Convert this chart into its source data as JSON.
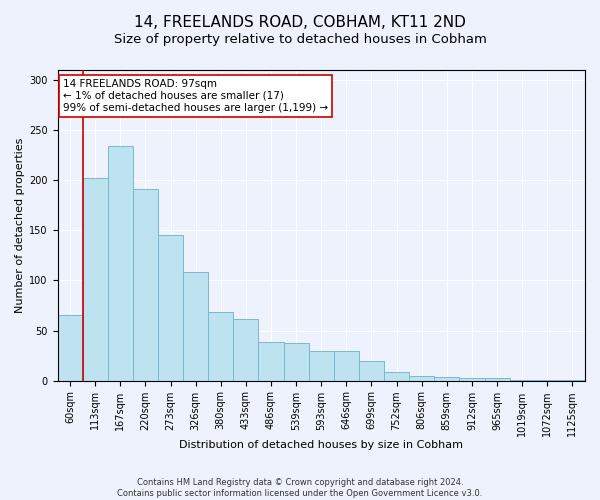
{
  "title": "14, FREELANDS ROAD, COBHAM, KT11 2ND",
  "subtitle": "Size of property relative to detached houses in Cobham",
  "xlabel": "Distribution of detached houses by size in Cobham",
  "ylabel": "Number of detached properties",
  "bar_labels": [
    "60sqm",
    "113sqm",
    "167sqm",
    "220sqm",
    "273sqm",
    "326sqm",
    "380sqm",
    "433sqm",
    "486sqm",
    "539sqm",
    "593sqm",
    "646sqm",
    "699sqm",
    "752sqm",
    "806sqm",
    "859sqm",
    "912sqm",
    "965sqm",
    "1019sqm",
    "1072sqm",
    "1125sqm"
  ],
  "bar_values": [
    65,
    202,
    234,
    191,
    145,
    108,
    68,
    61,
    39,
    38,
    30,
    30,
    20,
    9,
    5,
    4,
    3,
    3,
    1,
    1,
    1
  ],
  "bar_color": "#bee3f0",
  "bar_edge_color": "#7ab8d0",
  "vline_color": "#cc0000",
  "vline_x": 0.5,
  "annotation_title": "14 FREELANDS ROAD: 97sqm",
  "annotation_line1": "← 1% of detached houses are smaller (17)",
  "annotation_line2": "99% of semi-detached houses are larger (1,199) →",
  "annotation_box_color": "#ffffff",
  "annotation_border_color": "#cc0000",
  "ylim": [
    0,
    310
  ],
  "yticks": [
    0,
    50,
    100,
    150,
    200,
    250,
    300
  ],
  "footnote1": "Contains HM Land Registry data © Crown copyright and database right 2024.",
  "footnote2": "Contains public sector information licensed under the Open Government Licence v3.0.",
  "background_color": "#eef2fc",
  "title_fontsize": 11,
  "subtitle_fontsize": 9.5,
  "tick_fontsize": 7,
  "axis_label_fontsize": 8,
  "annotation_fontsize": 7.5,
  "footnote_fontsize": 6
}
